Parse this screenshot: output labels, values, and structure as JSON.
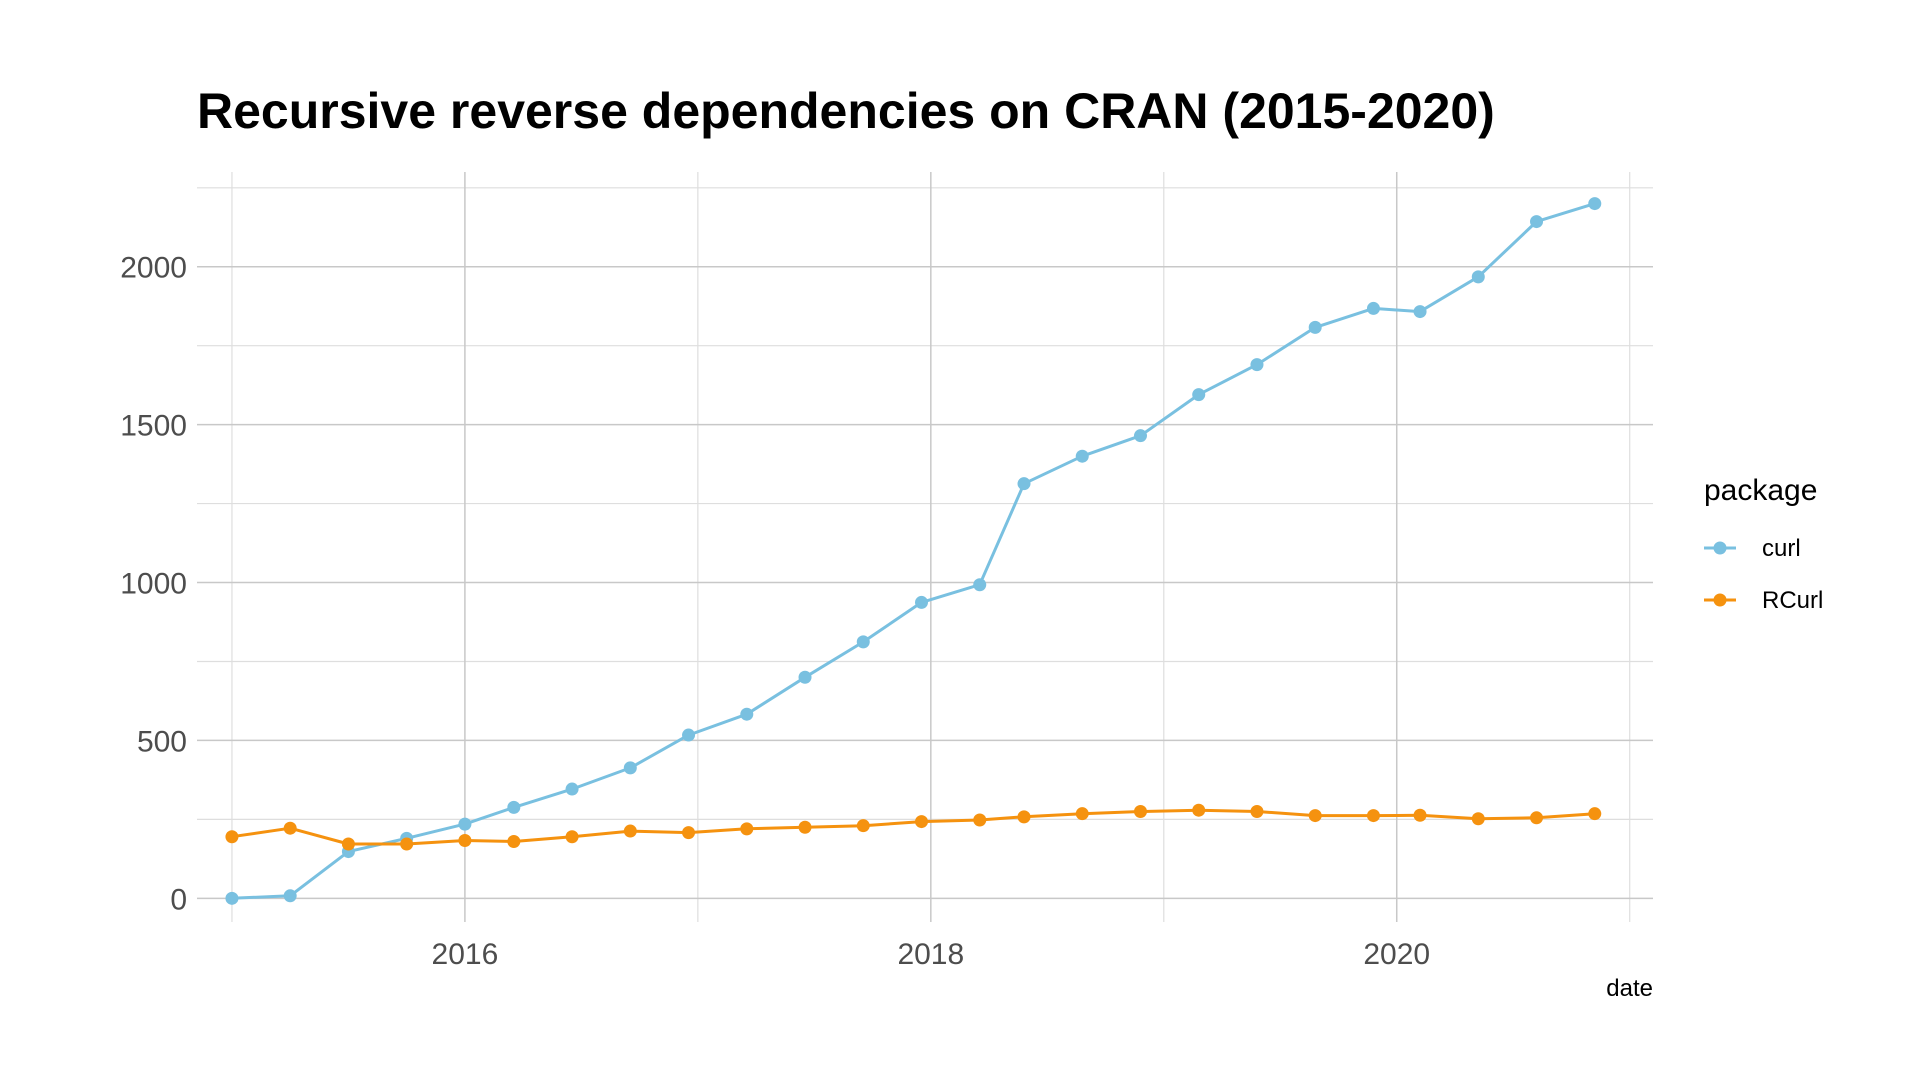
{
  "chart_data": {
    "type": "line",
    "title": "Recursive reverse dependencies on CRAN (2015-2020)",
    "xlabel": "date",
    "ylabel": "",
    "xlim": [
      2014.85,
      2021.1
    ],
    "ylim": [
      -75,
      2300
    ],
    "x_ticks": [
      2016,
      2018,
      2020
    ],
    "x_tick_labels": [
      "2016",
      "2018",
      "2020"
    ],
    "x_minor_ticks": [
      2015,
      2017,
      2019,
      2021
    ],
    "y_ticks": [
      0,
      500,
      1000,
      1500,
      2000
    ],
    "y_tick_labels": [
      "0",
      "500",
      "1000",
      "1500",
      "2000"
    ],
    "y_minor_ticks": [
      250,
      750,
      1250,
      1750,
      2250
    ],
    "grid": true,
    "legend": {
      "title": "package",
      "position": "right"
    },
    "x": [
      2015.0,
      2015.25,
      2015.5,
      2015.75,
      2016.0,
      2016.21,
      2016.46,
      2016.71,
      2016.96,
      2017.21,
      2017.46,
      2017.71,
      2017.96,
      2018.21,
      2018.4,
      2018.65,
      2018.9,
      2019.15,
      2019.4,
      2019.65,
      2019.9,
      2020.1,
      2020.35,
      2020.6,
      2020.85
    ],
    "series": [
      {
        "name": "curl",
        "color": "#79c0e0",
        "values": [
          0,
          8,
          148,
          190,
          235,
          288,
          346,
          413,
          517,
          583,
          700,
          812,
          937,
          993,
          1313,
          1400,
          1465,
          1595,
          1690,
          1808,
          1868,
          1858,
          1968,
          2143,
          2200
        ]
      },
      {
        "name": "RCurl",
        "color": "#f5920f",
        "values": [
          195,
          222,
          172,
          172,
          183,
          180,
          195,
          213,
          208,
          220,
          225,
          230,
          243,
          248,
          258,
          268,
          275,
          279,
          275,
          262,
          262,
          263,
          252,
          255,
          268
        ]
      }
    ]
  }
}
